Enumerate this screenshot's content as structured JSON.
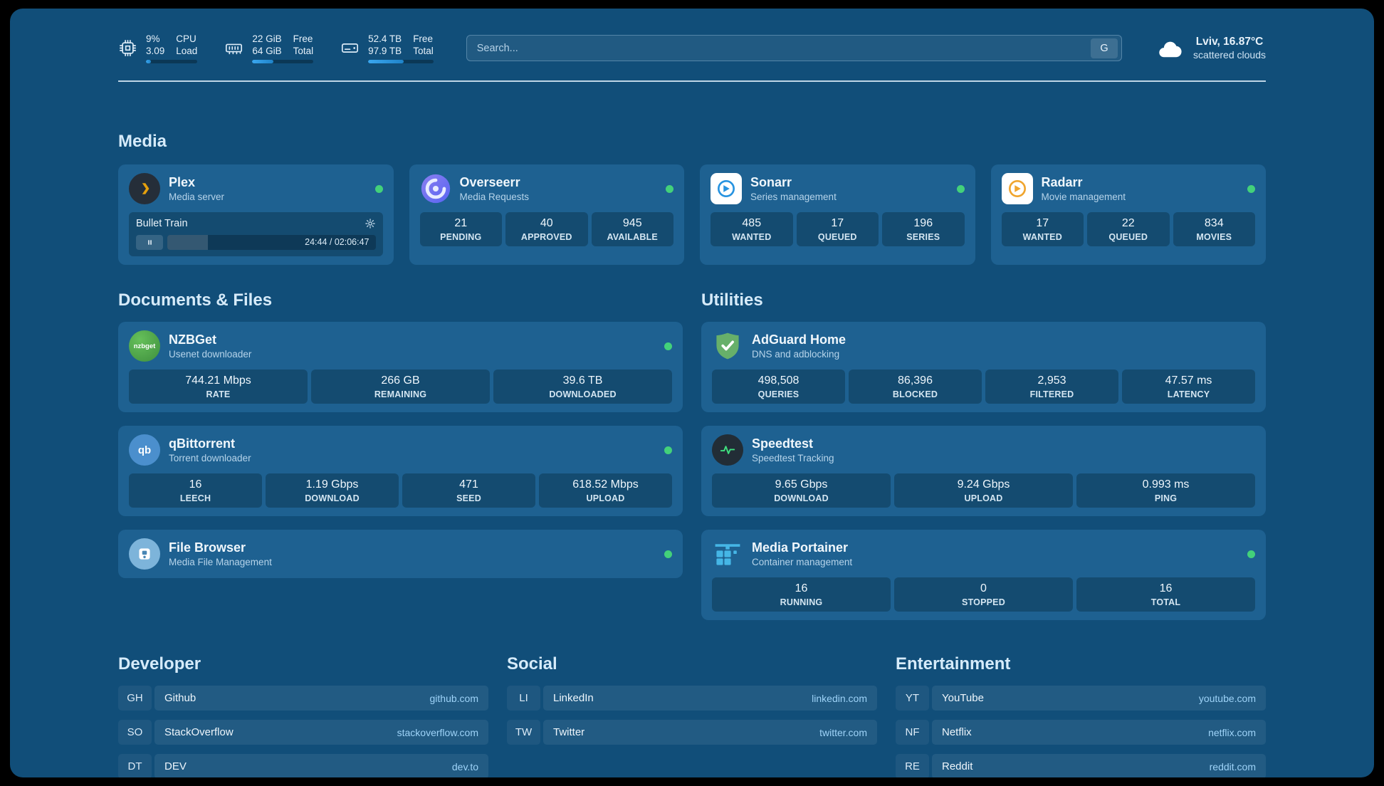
{
  "colors": {
    "page_background": "#114e79",
    "card_background": "#1e6191",
    "accent_blue": "#3aa7f0",
    "status_online": "#43d17a",
    "link_blue": "#9ed3f8"
  },
  "header": {
    "cpu": {
      "percent": "9%",
      "load": "3.09",
      "label_top": "CPU",
      "label_bottom": "Load",
      "bar": 9
    },
    "ram": {
      "free": "22 GiB",
      "total": "64 GiB",
      "label_top": "Free",
      "label_bottom": "Total",
      "bar": 34
    },
    "disk": {
      "free": "52.4 TB",
      "total": "97.9 TB",
      "label_top": "Free",
      "label_bottom": "Total",
      "bar": 54
    },
    "search": {
      "placeholder": "Search...",
      "engine_button": "G"
    },
    "weather": {
      "location": "Lviv, 16.87°C",
      "condition": "scattered clouds"
    }
  },
  "media": {
    "title": "Media",
    "plex": {
      "name": "Plex",
      "subtitle": "Media server",
      "now_playing": "Bullet Train",
      "time": "24:44 / 02:06:47",
      "progress": 19.5
    },
    "overseerr": {
      "name": "Overseerr",
      "subtitle": "Media Requests",
      "stats": [
        {
          "value": "21",
          "label": "PENDING"
        },
        {
          "value": "40",
          "label": "APPROVED"
        },
        {
          "value": "945",
          "label": "AVAILABLE"
        }
      ]
    },
    "sonarr": {
      "name": "Sonarr",
      "subtitle": "Series management",
      "stats": [
        {
          "value": "485",
          "label": "WANTED"
        },
        {
          "value": "17",
          "label": "QUEUED"
        },
        {
          "value": "196",
          "label": "SERIES"
        }
      ]
    },
    "radarr": {
      "name": "Radarr",
      "subtitle": "Movie management",
      "stats": [
        {
          "value": "17",
          "label": "WANTED"
        },
        {
          "value": "22",
          "label": "QUEUED"
        },
        {
          "value": "834",
          "label": "MOVIES"
        }
      ]
    }
  },
  "documents": {
    "title": "Documents & Files",
    "nzbget": {
      "name": "NZBGet",
      "subtitle": "Usenet downloader",
      "icon_text": "nzbget",
      "stats": [
        {
          "value": "744.21 Mbps",
          "label": "RATE"
        },
        {
          "value": "266 GB",
          "label": "REMAINING"
        },
        {
          "value": "39.6 TB",
          "label": "DOWNLOADED"
        }
      ]
    },
    "qbittorrent": {
      "name": "qBittorrent",
      "subtitle": "Torrent downloader",
      "icon_text": "qb",
      "stats": [
        {
          "value": "16",
          "label": "LEECH"
        },
        {
          "value": "1.19 Gbps",
          "label": "DOWNLOAD"
        },
        {
          "value": "471",
          "label": "SEED"
        },
        {
          "value": "618.52 Mbps",
          "label": "UPLOAD"
        }
      ]
    },
    "filebrowser": {
      "name": "File Browser",
      "subtitle": "Media File Management"
    }
  },
  "utilities": {
    "title": "Utilities",
    "adguard": {
      "name": "AdGuard Home",
      "subtitle": "DNS and adblocking",
      "stats": [
        {
          "value": "498,508",
          "label": "QUERIES"
        },
        {
          "value": "86,396",
          "label": "BLOCKED"
        },
        {
          "value": "2,953",
          "label": "FILTERED"
        },
        {
          "value": "47.57 ms",
          "label": "LATENCY"
        }
      ]
    },
    "speedtest": {
      "name": "Speedtest",
      "subtitle": "Speedtest Tracking",
      "stats": [
        {
          "value": "9.65 Gbps",
          "label": "DOWNLOAD"
        },
        {
          "value": "9.24 Gbps",
          "label": "UPLOAD"
        },
        {
          "value": "0.993 ms",
          "label": "PING"
        }
      ]
    },
    "portainer": {
      "name": "Media Portainer",
      "subtitle": "Container management",
      "stats": [
        {
          "value": "16",
          "label": "RUNNING"
        },
        {
          "value": "0",
          "label": "STOPPED"
        },
        {
          "value": "16",
          "label": "TOTAL"
        }
      ]
    }
  },
  "bookmarks": [
    {
      "title": "Developer",
      "items": [
        {
          "abbr": "GH",
          "name": "Github",
          "url": "github.com"
        },
        {
          "abbr": "SO",
          "name": "StackOverflow",
          "url": "stackoverflow.com"
        },
        {
          "abbr": "DT",
          "name": "DEV",
          "url": "dev.to"
        }
      ]
    },
    {
      "title": "Social",
      "items": [
        {
          "abbr": "LI",
          "name": "LinkedIn",
          "url": "linkedin.com"
        },
        {
          "abbr": "TW",
          "name": "Twitter",
          "url": "twitter.com"
        }
      ]
    },
    {
      "title": "Entertainment",
      "items": [
        {
          "abbr": "YT",
          "name": "YouTube",
          "url": "youtube.com"
        },
        {
          "abbr": "NF",
          "name": "Netflix",
          "url": "netflix.com"
        },
        {
          "abbr": "RE",
          "name": "Reddit",
          "url": "reddit.com"
        }
      ]
    }
  ]
}
